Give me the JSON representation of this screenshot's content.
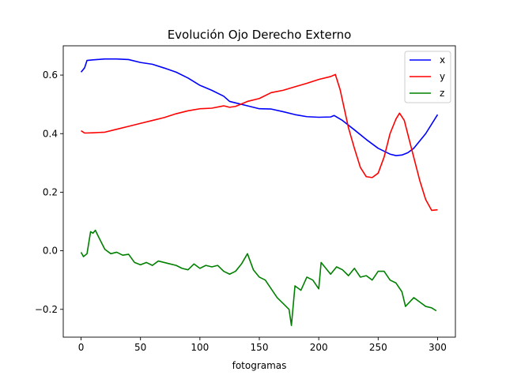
{
  "chart_data": {
    "type": "line",
    "title": "Evolución Ojo Derecho Externo",
    "xlabel": "fotogramas",
    "ylabel": "",
    "xlim": [
      -15,
      315
    ],
    "ylim": [
      -0.295,
      0.7
    ],
    "x_ticks": [
      0,
      50,
      100,
      150,
      200,
      250,
      300
    ],
    "x_tick_labels": [
      "0",
      "50",
      "100",
      "150",
      "200",
      "250",
      "300"
    ],
    "y_ticks": [
      -0.2,
      0.0,
      0.2,
      0.4,
      0.6
    ],
    "y_tick_labels": [
      "−0.2",
      "0.0",
      "0.2",
      "0.4",
      "0.6"
    ],
    "grid": false,
    "legend": {
      "position": "top-right"
    },
    "series": [
      {
        "name": "x",
        "color": "#0000ff",
        "points": [
          [
            0,
            0.61
          ],
          [
            3,
            0.625
          ],
          [
            5,
            0.65
          ],
          [
            10,
            0.652
          ],
          [
            20,
            0.655
          ],
          [
            30,
            0.655
          ],
          [
            40,
            0.653
          ],
          [
            50,
            0.643
          ],
          [
            60,
            0.637
          ],
          [
            70,
            0.624
          ],
          [
            80,
            0.61
          ],
          [
            90,
            0.59
          ],
          [
            100,
            0.565
          ],
          [
            110,
            0.548
          ],
          [
            120,
            0.528
          ],
          [
            125,
            0.51
          ],
          [
            130,
            0.505
          ],
          [
            140,
            0.495
          ],
          [
            150,
            0.485
          ],
          [
            160,
            0.484
          ],
          [
            170,
            0.475
          ],
          [
            180,
            0.465
          ],
          [
            190,
            0.458
          ],
          [
            200,
            0.456
          ],
          [
            210,
            0.457
          ],
          [
            213,
            0.462
          ],
          [
            220,
            0.445
          ],
          [
            230,
            0.413
          ],
          [
            240,
            0.38
          ],
          [
            250,
            0.35
          ],
          [
            260,
            0.33
          ],
          [
            265,
            0.325
          ],
          [
            270,
            0.327
          ],
          [
            275,
            0.335
          ],
          [
            280,
            0.35
          ],
          [
            290,
            0.4
          ],
          [
            300,
            0.465
          ]
        ]
      },
      {
        "name": "y",
        "color": "#ff0000",
        "points": [
          [
            0,
            0.41
          ],
          [
            3,
            0.402
          ],
          [
            10,
            0.403
          ],
          [
            20,
            0.405
          ],
          [
            30,
            0.415
          ],
          [
            40,
            0.425
          ],
          [
            50,
            0.435
          ],
          [
            60,
            0.445
          ],
          [
            70,
            0.455
          ],
          [
            80,
            0.468
          ],
          [
            90,
            0.478
          ],
          [
            100,
            0.485
          ],
          [
            110,
            0.487
          ],
          [
            120,
            0.495
          ],
          [
            125,
            0.49
          ],
          [
            130,
            0.493
          ],
          [
            140,
            0.51
          ],
          [
            150,
            0.52
          ],
          [
            160,
            0.54
          ],
          [
            170,
            0.548
          ],
          [
            180,
            0.56
          ],
          [
            190,
            0.572
          ],
          [
            200,
            0.585
          ],
          [
            210,
            0.595
          ],
          [
            214,
            0.602
          ],
          [
            218,
            0.55
          ],
          [
            225,
            0.42
          ],
          [
            230,
            0.35
          ],
          [
            235,
            0.285
          ],
          [
            240,
            0.253
          ],
          [
            245,
            0.25
          ],
          [
            250,
            0.265
          ],
          [
            255,
            0.32
          ],
          [
            260,
            0.4
          ],
          [
            265,
            0.45
          ],
          [
            268,
            0.47
          ],
          [
            272,
            0.445
          ],
          [
            278,
            0.35
          ],
          [
            285,
            0.24
          ],
          [
            290,
            0.175
          ],
          [
            295,
            0.138
          ],
          [
            300,
            0.14
          ]
        ]
      },
      {
        "name": "z",
        "color": "#008000",
        "points": [
          [
            0,
            -0.005
          ],
          [
            2,
            -0.02
          ],
          [
            5,
            -0.01
          ],
          [
            8,
            0.065
          ],
          [
            10,
            0.06
          ],
          [
            12,
            0.07
          ],
          [
            15,
            0.045
          ],
          [
            20,
            0.005
          ],
          [
            25,
            -0.01
          ],
          [
            30,
            -0.005
          ],
          [
            35,
            -0.015
          ],
          [
            40,
            -0.012
          ],
          [
            45,
            -0.04
          ],
          [
            50,
            -0.048
          ],
          [
            55,
            -0.04
          ],
          [
            60,
            -0.05
          ],
          [
            65,
            -0.035
          ],
          [
            70,
            -0.04
          ],
          [
            75,
            -0.045
          ],
          [
            80,
            -0.05
          ],
          [
            85,
            -0.06
          ],
          [
            90,
            -0.065
          ],
          [
            95,
            -0.045
          ],
          [
            100,
            -0.06
          ],
          [
            105,
            -0.05
          ],
          [
            110,
            -0.055
          ],
          [
            115,
            -0.05
          ],
          [
            120,
            -0.07
          ],
          [
            125,
            -0.08
          ],
          [
            130,
            -0.07
          ],
          [
            135,
            -0.045
          ],
          [
            140,
            -0.01
          ],
          [
            145,
            -0.065
          ],
          [
            150,
            -0.09
          ],
          [
            155,
            -0.1
          ],
          [
            160,
            -0.13
          ],
          [
            165,
            -0.16
          ],
          [
            170,
            -0.18
          ],
          [
            175,
            -0.2
          ],
          [
            177,
            -0.255
          ],
          [
            180,
            -0.12
          ],
          [
            185,
            -0.135
          ],
          [
            190,
            -0.09
          ],
          [
            195,
            -0.1
          ],
          [
            200,
            -0.13
          ],
          [
            202,
            -0.04
          ],
          [
            205,
            -0.055
          ],
          [
            210,
            -0.08
          ],
          [
            215,
            -0.055
          ],
          [
            220,
            -0.065
          ],
          [
            225,
            -0.085
          ],
          [
            230,
            -0.06
          ],
          [
            235,
            -0.09
          ],
          [
            240,
            -0.085
          ],
          [
            245,
            -0.1
          ],
          [
            250,
            -0.07
          ],
          [
            255,
            -0.07
          ],
          [
            260,
            -0.1
          ],
          [
            265,
            -0.11
          ],
          [
            270,
            -0.14
          ],
          [
            273,
            -0.19
          ],
          [
            280,
            -0.16
          ],
          [
            285,
            -0.175
          ],
          [
            290,
            -0.19
          ],
          [
            295,
            -0.195
          ],
          [
            299,
            -0.205
          ]
        ]
      }
    ]
  }
}
